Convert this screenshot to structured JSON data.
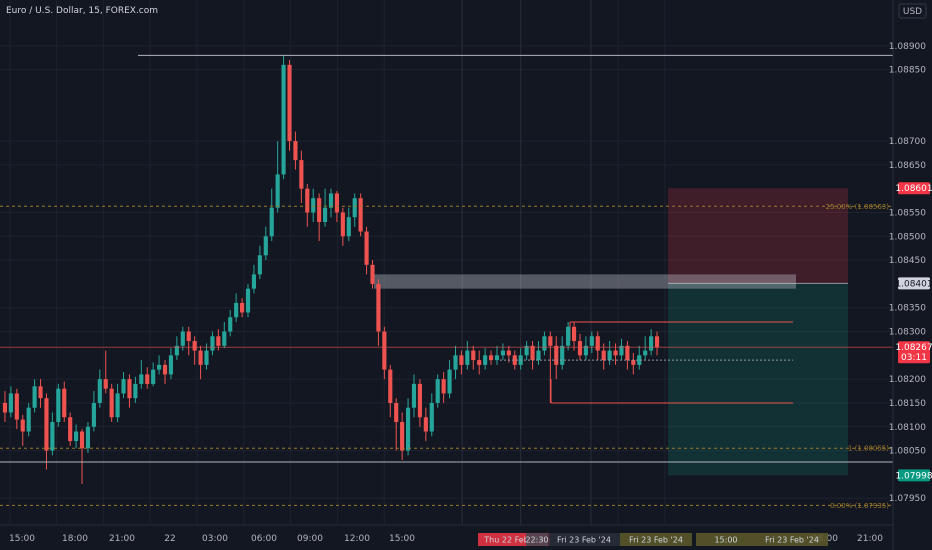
{
  "header": {
    "title": "Euro / U.S. Dollar, 15, FOREX.com",
    "currency": "USD"
  },
  "colors": {
    "bg": "#131722",
    "up": "#26a69a",
    "down": "#ef5350",
    "grid": "#1e222d",
    "stop_zone": "#f2364533",
    "target_zone": "#08998133",
    "axis_text": "#b2b5be",
    "fib": "#9c7a2b",
    "red_tag": "#f23645",
    "green_tag": "#089981",
    "white_tag": "#d1d4dc"
  },
  "chart_data": {
    "type": "candlestick",
    "title": "Euro / U.S. Dollar, 15, FOREX.com",
    "ylim": [
      1.079,
      1.0895
    ],
    "y_ticks": [
      "1.08900",
      "1.08850",
      "1.08700",
      "1.08650",
      "1.08550",
      "1.08500",
      "1.08450",
      "1.08350",
      "1.08300",
      "1.08200",
      "1.08150",
      "1.08100",
      "1.08050",
      "1.07950"
    ],
    "y_tick_values": [
      1.089,
      1.0885,
      1.087,
      1.0865,
      1.0855,
      1.085,
      1.0845,
      1.0835,
      1.083,
      1.082,
      1.0815,
      1.081,
      1.0805,
      1.0795
    ],
    "x_ticks": [
      "15:00",
      "18:00",
      "21:00",
      "22",
      "03:00",
      "06:00",
      "09:00",
      "12:00",
      "15:00",
      "18:00",
      "21:00"
    ],
    "x_tick_bars": [
      2,
      14,
      26,
      38,
      50,
      62,
      74,
      86,
      98,
      158,
      170
    ],
    "bar_count": 174,
    "timeline_labels": [
      "Thu 22 Feb '24",
      "22:30",
      "Fri 23 Feb '24",
      "Fri 23 Feb '24",
      "15:00",
      "Fri 23 Feb '24"
    ],
    "price_tags": [
      {
        "label": "1.08601",
        "value": 1.08601,
        "style": "red"
      },
      {
        "label": "1.08401",
        "value": 1.08401,
        "style": "white"
      },
      {
        "label": "1.08267",
        "value": 1.08267,
        "style": "red",
        "countdown": "03:11"
      },
      {
        "label": "1.07998",
        "value": 1.07998,
        "style": "green"
      }
    ],
    "fib_levels": [
      {
        "label": "25.00% (1.08563)",
        "value": 1.08563
      },
      {
        "label": "1 (1.08055)",
        "value": 1.08055
      },
      {
        "label": "0.00% (1.07935)",
        "value": 1.07935
      }
    ],
    "horizontal_lines": [
      {
        "value": 1.0888,
        "from_bar": 23,
        "to_bar": 174
      },
      {
        "value": 1.08026,
        "from_bar": 0,
        "to_bar": 174
      }
    ],
    "position": {
      "type": "short",
      "entry": 1.08401,
      "stop": 1.08601,
      "target": 1.07998,
      "from_bar": 115,
      "to_bar": 140
    },
    "supply_zone": {
      "top": 1.0842,
      "bottom": 1.0839,
      "from_bar": 62,
      "to_bar": 133
    },
    "range_box": {
      "top": 1.0832,
      "bottom": 1.0815,
      "from_bar": 92,
      "to_bar": 132
    },
    "candles": [
      [
        1.0815,
        1.0813,
        1.08175,
        1.0811
      ],
      [
        1.0813,
        1.0817,
        1.08185,
        1.0812
      ],
      [
        1.0817,
        1.08115,
        1.0818,
        1.08095
      ],
      [
        1.08115,
        1.0809,
        1.08125,
        1.0806
      ],
      [
        1.0809,
        1.0814,
        1.0815,
        1.0808
      ],
      [
        1.0814,
        1.08185,
        1.082,
        1.0813
      ],
      [
        1.08185,
        1.0816,
        1.082,
        1.0814
      ],
      [
        1.0816,
        1.0805,
        1.0817,
        1.0801
      ],
      [
        1.0805,
        1.0811,
        1.0813,
        1.0804
      ],
      [
        1.0811,
        1.0818,
        1.0819,
        1.081
      ],
      [
        1.0818,
        1.0812,
        1.08195,
        1.0811
      ],
      [
        1.0812,
        1.0807,
        1.0813,
        1.0806
      ],
      [
        1.0807,
        1.0809,
        1.08105,
        1.08055
      ],
      [
        1.0809,
        1.08055,
        1.08095,
        1.0798
      ],
      [
        1.08055,
        1.081,
        1.0811,
        1.08045
      ],
      [
        1.081,
        1.0815,
        1.08175,
        1.0809
      ],
      [
        1.0815,
        1.082,
        1.0822,
        1.0814
      ],
      [
        1.082,
        1.0818,
        1.0826,
        1.0817
      ],
      [
        1.0818,
        1.0812,
        1.0819,
        1.0811
      ],
      [
        1.0812,
        1.0817,
        1.0819,
        1.0811
      ],
      [
        1.0817,
        1.082,
        1.08215,
        1.0816
      ],
      [
        1.082,
        1.0816,
        1.0821,
        1.0814
      ],
      [
        1.0816,
        1.0819,
        1.08205,
        1.0815
      ],
      [
        1.0819,
        1.0821,
        1.0824,
        1.0818
      ],
      [
        1.0821,
        1.0819,
        1.08225,
        1.0818
      ],
      [
        1.0819,
        1.0822,
        1.08235,
        1.08185
      ],
      [
        1.0822,
        1.0823,
        1.0825,
        1.0821
      ],
      [
        1.0823,
        1.0821,
        1.0824,
        1.0819
      ],
      [
        1.0821,
        1.0825,
        1.08265,
        1.082
      ],
      [
        1.0825,
        1.0827,
        1.0829,
        1.0824
      ],
      [
        1.0827,
        1.083,
        1.0831,
        1.0826
      ],
      [
        1.083,
        1.0828,
        1.0831,
        1.0825
      ],
      [
        1.0828,
        1.0826,
        1.0829,
        1.0823
      ],
      [
        1.0826,
        1.0823,
        1.0827,
        1.082
      ],
      [
        1.0823,
        1.0826,
        1.08275,
        1.0822
      ],
      [
        1.0826,
        1.0829,
        1.083,
        1.0825
      ],
      [
        1.0829,
        1.0827,
        1.08305,
        1.0826
      ],
      [
        1.0827,
        1.083,
        1.0832,
        1.08265
      ],
      [
        1.083,
        1.0833,
        1.08345,
        1.0829
      ],
      [
        1.0833,
        1.0836,
        1.0838,
        1.0832
      ],
      [
        1.0836,
        1.0834,
        1.0837,
        1.0833
      ],
      [
        1.0834,
        1.0839,
        1.084,
        1.0833
      ],
      [
        1.0839,
        1.0842,
        1.0844,
        1.0838
      ],
      [
        1.0842,
        1.0846,
        1.0848,
        1.0841
      ],
      [
        1.0846,
        1.085,
        1.0852,
        1.0845
      ],
      [
        1.085,
        1.0856,
        1.086,
        1.0849
      ],
      [
        1.0856,
        1.0863,
        1.087,
        1.0855
      ],
      [
        1.0863,
        1.0886,
        1.0888,
        1.0862
      ],
      [
        1.0886,
        1.087,
        1.0887,
        1.0868
      ],
      [
        1.087,
        1.0866,
        1.0872,
        1.0864
      ],
      [
        1.0866,
        1.086,
        1.0868,
        1.0857
      ],
      [
        1.086,
        1.0855,
        1.0861,
        1.0852
      ],
      [
        1.0855,
        1.0858,
        1.086,
        1.0853
      ],
      [
        1.0858,
        1.0853,
        1.0859,
        1.0849
      ],
      [
        1.0853,
        1.0856,
        1.086,
        1.0852
      ],
      [
        1.0856,
        1.0859,
        1.086,
        1.0854
      ],
      [
        1.0859,
        1.0855,
        1.08595,
        1.0853
      ],
      [
        1.0855,
        1.085,
        1.0856,
        1.0848
      ],
      [
        1.085,
        1.0854,
        1.0856,
        1.0849
      ],
      [
        1.0854,
        1.0858,
        1.0859,
        1.0852
      ],
      [
        1.0858,
        1.0851,
        1.0859,
        1.085
      ],
      [
        1.0851,
        1.0844,
        1.0852,
        1.0842
      ],
      [
        1.0844,
        1.084,
        1.0845,
        1.0839
      ],
      [
        1.084,
        1.083,
        1.0841,
        1.0827
      ],
      [
        1.083,
        1.0822,
        1.0831,
        1.082
      ],
      [
        1.0822,
        1.0815,
        1.0823,
        1.0812
      ],
      [
        1.0815,
        1.0811,
        1.0816,
        1.0805
      ],
      [
        1.0811,
        1.0805,
        1.0813,
        1.0803
      ],
      [
        1.0805,
        1.0814,
        1.0816,
        1.0804
      ],
      [
        1.0814,
        1.0819,
        1.0821,
        1.0812
      ],
      [
        1.0819,
        1.0812,
        1.082,
        1.081
      ],
      [
        1.0812,
        1.0809,
        1.0814,
        1.0807
      ],
      [
        1.0809,
        1.0815,
        1.0817,
        1.0808
      ],
      [
        1.0815,
        1.082,
        1.0821,
        1.0814
      ],
      [
        1.082,
        1.0817,
        1.08215,
        1.0815
      ],
      [
        1.0817,
        1.0822,
        1.0824,
        1.0816
      ],
      [
        1.0822,
        1.0825,
        1.0827,
        1.082
      ],
      [
        1.0825,
        1.0823,
        1.0826,
        1.0821
      ],
      [
        1.0823,
        1.0826,
        1.0828,
        1.0822
      ],
      [
        1.0826,
        1.0824,
        1.0827,
        1.0822
      ],
      [
        1.0824,
        1.0823,
        1.0826,
        1.0821
      ],
      [
        1.0823,
        1.0825,
        1.08265,
        1.0822
      ],
      [
        1.0825,
        1.0824,
        1.0826,
        1.0823
      ],
      [
        1.0824,
        1.0825,
        1.0827,
        1.0823
      ],
      [
        1.0825,
        1.0826,
        1.08275,
        1.0824
      ],
      [
        1.0826,
        1.0825,
        1.0827,
        1.08235
      ],
      [
        1.0825,
        1.0823,
        1.0826,
        1.0822
      ],
      [
        1.0823,
        1.0825,
        1.08265,
        1.0822
      ],
      [
        1.0825,
        1.0827,
        1.0828,
        1.0824
      ],
      [
        1.0827,
        1.0824,
        1.0828,
        1.0822
      ],
      [
        1.0824,
        1.0826,
        1.0828,
        1.0823
      ],
      [
        1.0826,
        1.0829,
        1.083,
        1.0825
      ],
      [
        1.0829,
        1.0827,
        1.083,
        1.0815
      ],
      [
        1.0827,
        1.0823,
        1.0829,
        1.082
      ],
      [
        1.0823,
        1.0827,
        1.0829,
        1.0822
      ],
      [
        1.0827,
        1.0831,
        1.0832,
        1.0826
      ],
      [
        1.0831,
        1.0828,
        1.0832,
        1.0826
      ],
      [
        1.0828,
        1.0825,
        1.08295,
        1.0824
      ],
      [
        1.0825,
        1.0827,
        1.0829,
        1.0824
      ],
      [
        1.0827,
        1.0829,
        1.083,
        1.08255
      ],
      [
        1.0829,
        1.0826,
        1.083,
        1.0824
      ],
      [
        1.0826,
        1.0824,
        1.08275,
        1.0822
      ],
      [
        1.0824,
        1.0826,
        1.0828,
        1.0823
      ],
      [
        1.0826,
        1.0825,
        1.08275,
        1.0823
      ],
      [
        1.0825,
        1.0827,
        1.08285,
        1.0824
      ],
      [
        1.0827,
        1.0824,
        1.0828,
        1.0822
      ],
      [
        1.0824,
        1.0823,
        1.08255,
        1.0821
      ],
      [
        1.0823,
        1.0825,
        1.0827,
        1.0822
      ],
      [
        1.0825,
        1.0826,
        1.0829,
        1.0824
      ],
      [
        1.0826,
        1.0829,
        1.08305,
        1.0825
      ],
      [
        1.0829,
        1.08267,
        1.083,
        1.0825
      ]
    ]
  }
}
